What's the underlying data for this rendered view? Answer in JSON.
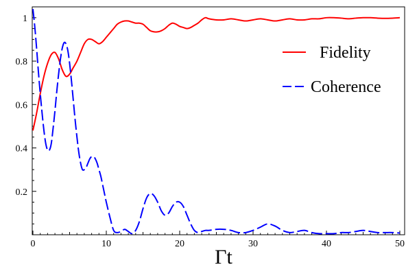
{
  "chart_data": {
    "type": "line",
    "xlabel": "Γt",
    "ylabel": "",
    "xlim": [
      0,
      50
    ],
    "ylim": [
      0,
      1.05
    ],
    "xticks": [
      0,
      10,
      20,
      30,
      40,
      50
    ],
    "yticks": [
      0.2,
      0.4,
      0.6,
      0.8,
      1
    ],
    "ytick_labels": [
      "0.2",
      "0.4",
      "0.6",
      "0.8",
      "1"
    ],
    "grid": false,
    "legend_position": "top-right",
    "series": [
      {
        "name": "Fidelity",
        "color": "#ff0000",
        "style": "solid",
        "x": [
          0,
          0.5,
          1,
          1.5,
          2,
          2.5,
          3,
          3.5,
          4,
          4.5,
          5,
          5.5,
          6,
          6.5,
          7,
          7.5,
          8,
          8.5,
          9,
          9.5,
          10,
          10.5,
          11,
          11.5,
          12,
          12.5,
          13,
          13.5,
          14,
          14.5,
          15,
          15.5,
          16,
          16.5,
          17,
          17.5,
          18,
          18.5,
          19,
          19.5,
          20,
          20.5,
          21,
          21.5,
          22,
          22.5,
          23,
          23.5,
          24,
          25,
          26,
          27,
          28,
          29,
          30,
          31,
          32,
          33,
          34,
          35,
          36,
          37,
          38,
          39,
          40,
          41,
          42,
          43,
          44,
          45,
          46,
          47,
          48,
          49,
          50
        ],
        "y": [
          0.48,
          0.56,
          0.65,
          0.73,
          0.79,
          0.83,
          0.84,
          0.81,
          0.76,
          0.73,
          0.74,
          0.77,
          0.8,
          0.84,
          0.88,
          0.9,
          0.9,
          0.89,
          0.88,
          0.89,
          0.91,
          0.93,
          0.95,
          0.97,
          0.98,
          0.985,
          0.985,
          0.98,
          0.975,
          0.975,
          0.97,
          0.955,
          0.94,
          0.935,
          0.935,
          0.94,
          0.95,
          0.965,
          0.975,
          0.97,
          0.96,
          0.955,
          0.95,
          0.955,
          0.965,
          0.975,
          0.99,
          1.0,
          0.995,
          0.99,
          0.99,
          0.995,
          0.99,
          0.985,
          0.99,
          0.995,
          0.99,
          0.985,
          0.99,
          0.995,
          0.99,
          0.99,
          0.995,
          0.995,
          1.0,
          1.0,
          0.998,
          0.995,
          0.998,
          1.0,
          1.0,
          0.998,
          0.997,
          0.998,
          1.0
        ]
      },
      {
        "name": "Coherence",
        "color": "#0000ff",
        "style": "dashed",
        "x": [
          0,
          0.25,
          0.5,
          0.75,
          1,
          1.25,
          1.5,
          1.75,
          2,
          2.25,
          2.5,
          2.75,
          3,
          3.25,
          3.5,
          3.75,
          4,
          4.25,
          4.5,
          4.75,
          5,
          5.25,
          5.5,
          5.75,
          6,
          6.25,
          6.5,
          6.75,
          7,
          7.25,
          7.5,
          7.75,
          8,
          8.25,
          8.5,
          8.75,
          9,
          9.25,
          9.5,
          9.75,
          10,
          10.5,
          11,
          11.5,
          12,
          12.5,
          13,
          13.5,
          14,
          14.5,
          15,
          15.5,
          16,
          16.5,
          17,
          17.5,
          18,
          18.5,
          19,
          19.5,
          20,
          20.5,
          21,
          21.5,
          22,
          22.5,
          23,
          23.5,
          24,
          25,
          26,
          27,
          28,
          29,
          30,
          31,
          32,
          33,
          34,
          35,
          36,
          37,
          38,
          39,
          40,
          41,
          42,
          43,
          44,
          45,
          46,
          47,
          48,
          49,
          50
        ],
        "y": [
          1.04,
          0.96,
          0.86,
          0.75,
          0.65,
          0.56,
          0.48,
          0.42,
          0.39,
          0.39,
          0.42,
          0.49,
          0.57,
          0.66,
          0.74,
          0.81,
          0.86,
          0.885,
          0.88,
          0.85,
          0.79,
          0.71,
          0.62,
          0.53,
          0.45,
          0.38,
          0.33,
          0.3,
          0.3,
          0.31,
          0.33,
          0.35,
          0.36,
          0.36,
          0.35,
          0.33,
          0.3,
          0.27,
          0.23,
          0.19,
          0.15,
          0.08,
          0.02,
          0.01,
          0.015,
          0.025,
          0.015,
          0.005,
          0.02,
          0.06,
          0.12,
          0.17,
          0.19,
          0.18,
          0.15,
          0.11,
          0.09,
          0.1,
          0.13,
          0.15,
          0.15,
          0.13,
          0.09,
          0.05,
          0.02,
          0.01,
          0.015,
          0.02,
          0.02,
          0.025,
          0.025,
          0.02,
          0.01,
          0.01,
          0.02,
          0.035,
          0.05,
          0.04,
          0.02,
          0.01,
          0.015,
          0.02,
          0.01,
          0.005,
          0.005,
          0.005,
          0.01,
          0.01,
          0.015,
          0.02,
          0.015,
          0.01,
          0.01,
          0.01,
          0.008
        ]
      }
    ]
  }
}
